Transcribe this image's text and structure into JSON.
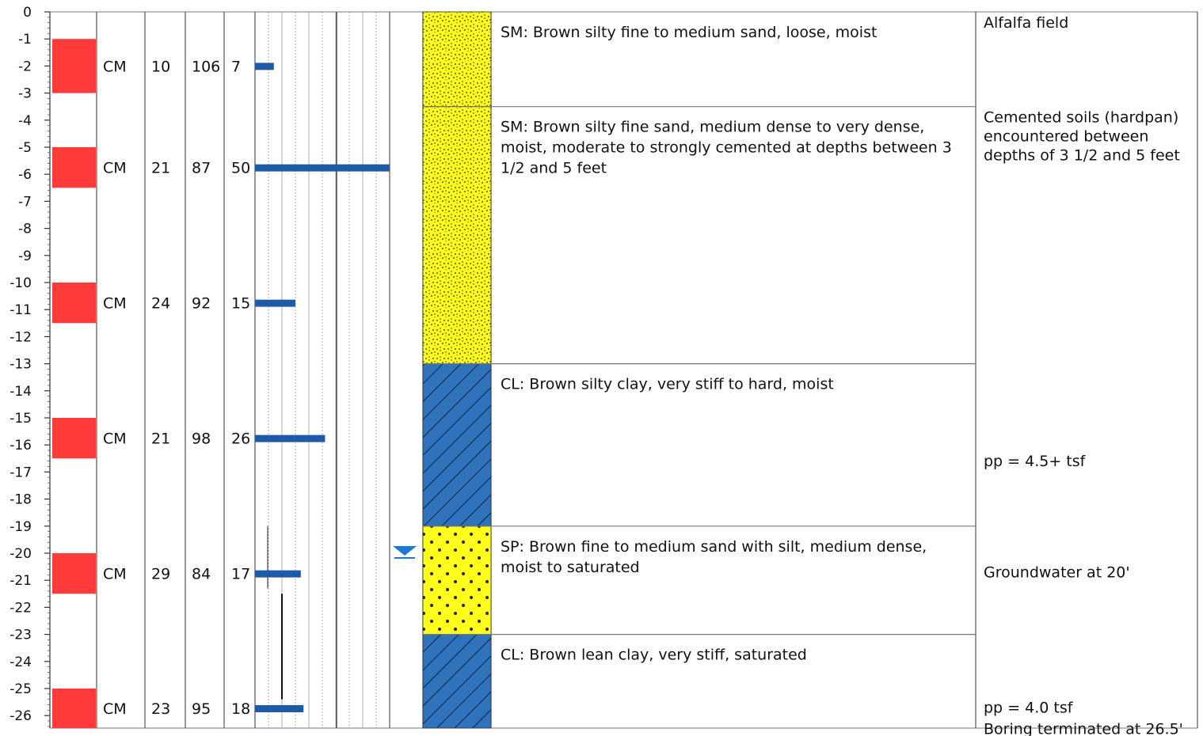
{
  "colors": {
    "sample": "#ff3b3b",
    "spt_bar": "#1f5aa6",
    "sand_fill": "#ffff1a",
    "clay_fill": "#2f73bd",
    "water": "#1f78d1",
    "grid": "#9a9a9a"
  },
  "depth_axis": {
    "min": -26.5,
    "max": 0,
    "ticks": [
      "0",
      "-1",
      "-2",
      "-3",
      "-4",
      "-5",
      "-6",
      "-7",
      "-8",
      "-9",
      "-10",
      "-11",
      "-12",
      "-13",
      "-14",
      "-15",
      "-16",
      "-17",
      "-18",
      "-19",
      "-20",
      "-21",
      "-22",
      "-23",
      "-24",
      "-25",
      "-26"
    ]
  },
  "samples": [
    {
      "top": -1,
      "bottom": -3,
      "type": "CM",
      "moisture": "10",
      "density": "106",
      "blows": "7",
      "blow_value": 7
    },
    {
      "top": -5,
      "bottom": -6.5,
      "type": "CM",
      "moisture": "21",
      "density": "87",
      "blows": "50",
      "blow_value": 50
    },
    {
      "top": -10,
      "bottom": -11.5,
      "type": "CM",
      "moisture": "24",
      "density": "92",
      "blows": "15",
      "blow_value": 15
    },
    {
      "top": -15,
      "bottom": -16.5,
      "type": "CM",
      "moisture": "21",
      "density": "98",
      "blows": "26",
      "blow_value": 26
    },
    {
      "top": -20,
      "bottom": -21.5,
      "type": "CM",
      "moisture": "29",
      "density": "84",
      "blows": "17",
      "blow_value": 17
    },
    {
      "top": -25,
      "bottom": -26.5,
      "type": "CM",
      "moisture": "23",
      "density": "95",
      "blows": "18",
      "blow_value": 18
    }
  ],
  "strata": [
    {
      "top": 0,
      "bottom": -3.5,
      "pattern": "silty-sand",
      "description": "SM: Brown silty fine to medium sand, loose, moist"
    },
    {
      "top": -3.5,
      "bottom": -13,
      "pattern": "silty-sand",
      "description": "SM: Brown silty fine sand, medium dense to very dense, moist, moderate to strongly cemented at depths between 3 1/2 and 5 feet"
    },
    {
      "top": -13,
      "bottom": -19,
      "pattern": "clay",
      "description": "CL: Brown silty clay, very stiff to hard, moist"
    },
    {
      "top": -19,
      "bottom": -23,
      "pattern": "sand",
      "description": "SP: Brown fine to medium sand with silt, medium dense, moist to saturated"
    },
    {
      "top": -23,
      "bottom": -26.5,
      "pattern": "clay",
      "description": "CL: Brown lean clay, very stiff, saturated"
    }
  ],
  "groundwater": {
    "depth": -20
  },
  "remarks": [
    {
      "depth": 0,
      "text": "Alfalfa field"
    },
    {
      "depth": -3.5,
      "text": "Cemented soils (hardpan) encountered between depths of 3 1/2 and 5 feet"
    },
    {
      "depth": -16.2,
      "text": "pp = 4.5+ tsf"
    },
    {
      "depth": -20.3,
      "text": "Groundwater at 20'"
    },
    {
      "depth": -25.3,
      "text": "pp = 4.0 tsf"
    },
    {
      "depth": -26.1,
      "text": "Boring terminated at 26.5'"
    }
  ]
}
